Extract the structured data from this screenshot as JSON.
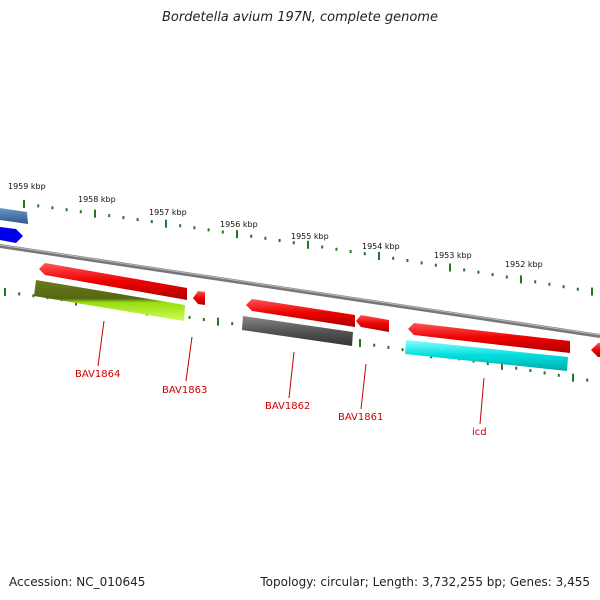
{
  "title": "Bordetella avium 197N, complete genome",
  "accession": "Accession: NC_010645",
  "summary": "Topology: circular; Length: 3,732,255 bp; Genes: 3,455",
  "kbp_labels": [
    "1959 kbp",
    "1958 kbp",
    "1957 kbp",
    "1956 kbp",
    "1955 kbp",
    "1954 kbp",
    "1953 kbp",
    "1952 kbp"
  ],
  "genes": [
    {
      "name": "BAV1864",
      "color": "#ee0000"
    },
    {
      "name": "BAV1863",
      "color": "#ee0000"
    },
    {
      "name": "BAV1862",
      "color": "#ee0000"
    },
    {
      "name": "BAV1861",
      "color": "#ee0000"
    },
    {
      "name": "icd",
      "color": "#ee0000"
    }
  ],
  "colors": {
    "forward_gene": "#ee0000",
    "upper_blue": "#4477aa",
    "blue": "#0000ee",
    "olive": "#6b7a1e",
    "lime": "#99dd11",
    "gray": "#555555",
    "cyan": "#00dddd",
    "tick": "#227722",
    "backbone": "#888888"
  }
}
